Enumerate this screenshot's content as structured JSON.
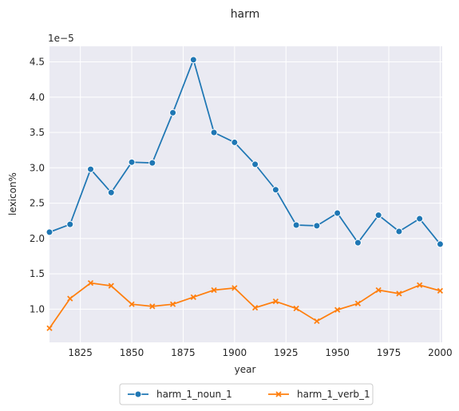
{
  "chart_data": {
    "type": "line",
    "title": "harm",
    "xlabel": "year",
    "ylabel": "lexicon%",
    "y_multiplier_label": "1e−5",
    "xlim": [
      1810,
      2001
    ],
    "ylim": [
      0.53,
      4.72
    ],
    "x_ticks": [
      1825,
      1850,
      1875,
      1900,
      1925,
      1950,
      1975,
      2000
    ],
    "y_ticks": [
      1.0,
      1.5,
      2.0,
      2.5,
      3.0,
      3.5,
      4.0,
      4.5
    ],
    "grid": true,
    "legend_position": "bottom-center",
    "x": [
      1810,
      1820,
      1830,
      1840,
      1850,
      1860,
      1870,
      1880,
      1890,
      1900,
      1910,
      1920,
      1930,
      1940,
      1950,
      1960,
      1970,
      1980,
      1990,
      2000
    ],
    "series": [
      {
        "name": "harm_1_noun_1",
        "color": "#1f77b4",
        "marker": "circle",
        "values": [
          2.09,
          2.2,
          2.98,
          2.65,
          3.08,
          3.07,
          3.78,
          4.53,
          3.5,
          3.36,
          3.05,
          2.69,
          2.19,
          2.18,
          2.36,
          1.94,
          2.33,
          2.1,
          2.28,
          1.92
        ]
      },
      {
        "name": "harm_1_verb_1",
        "color": "#ff7f0e",
        "marker": "x",
        "values": [
          0.73,
          1.15,
          1.37,
          1.33,
          1.07,
          1.04,
          1.07,
          1.17,
          1.27,
          1.3,
          1.02,
          1.11,
          1.01,
          0.83,
          0.99,
          1.08,
          1.27,
          1.22,
          1.34,
          1.26
        ]
      }
    ]
  },
  "style": {
    "plot_bg": "#eaeaf2",
    "grid_color": "#ffffff"
  }
}
